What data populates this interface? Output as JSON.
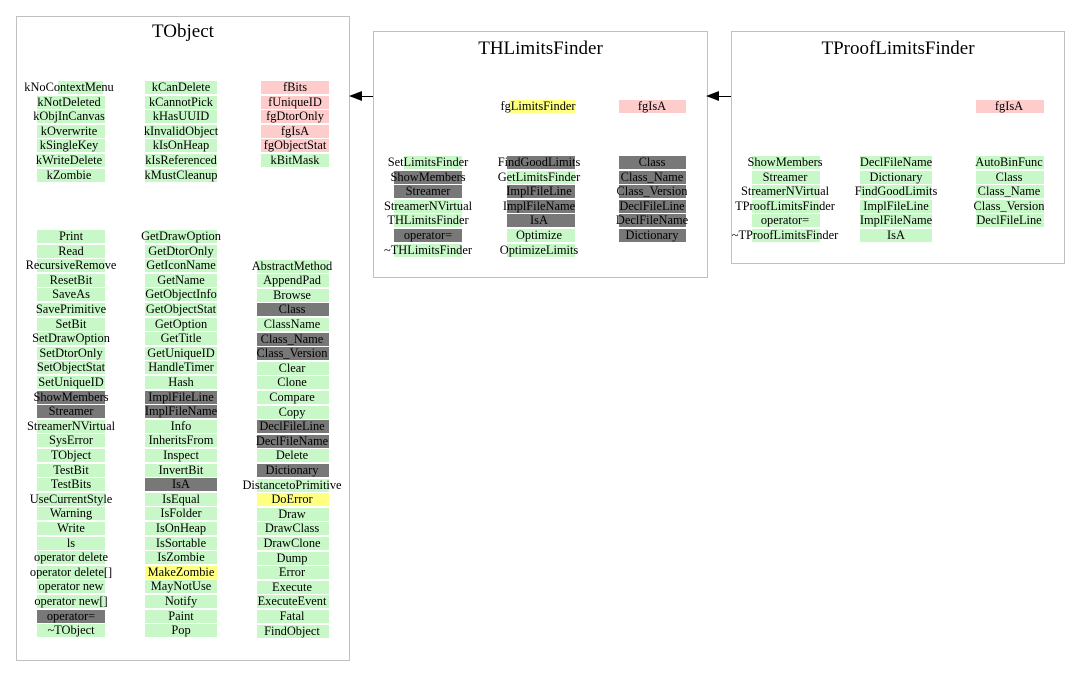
{
  "colors": {
    "border": "#c0c0c0",
    "public": "#c8f8c8",
    "data": "#ffcccc",
    "inherited_hidden": "#787878",
    "highlight": "#ffff80"
  },
  "boxes": [
    {
      "id": "tobject",
      "title": "TObject",
      "columns": [
        {
          "items": [
            {
              "t": "kNoContextMenu",
              "c": "g",
              "bar": [
                58,
                103
              ]
            },
            {
              "t": "kNotDeleted",
              "c": "g"
            },
            {
              "t": "kObjInCanvas",
              "c": "g"
            },
            {
              "t": "kOverwrite",
              "c": "g"
            },
            {
              "t": "kSingleKey",
              "c": "g"
            },
            {
              "t": "kWriteDelete",
              "c": "g"
            },
            {
              "t": "kZombie",
              "c": "g"
            }
          ]
        },
        {
          "items": [
            {
              "t": "kCanDelete",
              "c": "g"
            },
            {
              "t": "kCannotPick",
              "c": "g"
            },
            {
              "t": "kHasUUID",
              "c": "g"
            },
            {
              "t": "kInvalidObject",
              "c": "g"
            },
            {
              "t": "kIsOnHeap",
              "c": "g"
            },
            {
              "t": "kIsReferenced",
              "c": "g"
            },
            {
              "t": "kMustCleanup",
              "c": "g"
            }
          ]
        },
        {
          "items": [
            {
              "t": "fBits",
              "c": "r"
            },
            {
              "t": "fUniqueID",
              "c": "r"
            },
            {
              "t": "fgDtorOnly",
              "c": "r"
            },
            {
              "t": "fgIsA",
              "c": "r"
            },
            {
              "t": "fgObjectStat",
              "c": "r"
            },
            {
              "t": "kBitMask",
              "c": "g"
            }
          ]
        },
        {
          "items": [
            {
              "t": "Print",
              "c": "g"
            },
            {
              "t": "Read",
              "c": "g"
            },
            {
              "t": "RecursiveRemove",
              "c": "g"
            },
            {
              "t": "ResetBit",
              "c": "g"
            },
            {
              "t": "SaveAs",
              "c": "g"
            },
            {
              "t": "SavePrimitive",
              "c": "g"
            },
            {
              "t": "SetBit",
              "c": "g"
            },
            {
              "t": "SetDrawOption",
              "c": "g"
            },
            {
              "t": "SetDtorOnly",
              "c": "g"
            },
            {
              "t": "SetObjectStat",
              "c": "g"
            },
            {
              "t": "SetUniqueID",
              "c": "g"
            },
            {
              "t": "ShowMembers",
              "c": "d"
            },
            {
              "t": "Streamer",
              "c": "d"
            },
            {
              "t": "StreamerNVirtual",
              "c": "g"
            },
            {
              "t": "SysError",
              "c": "g"
            },
            {
              "t": "TObject",
              "c": "g"
            },
            {
              "t": "TestBit",
              "c": "g"
            },
            {
              "t": "TestBits",
              "c": "g"
            },
            {
              "t": "UseCurrentStyle",
              "c": "g"
            },
            {
              "t": "Warning",
              "c": "g"
            },
            {
              "t": "Write",
              "c": "g"
            },
            {
              "t": "ls",
              "c": "g"
            },
            {
              "t": "operator delete",
              "c": "g"
            },
            {
              "t": "operator delete[]",
              "c": "g"
            },
            {
              "t": "operator new",
              "c": "g"
            },
            {
              "t": "operator new[]",
              "c": "g"
            },
            {
              "t": "operator=",
              "c": "d"
            },
            {
              "t": "~TObject",
              "c": "g"
            }
          ]
        },
        {
          "items": [
            {
              "t": "GetDrawOption",
              "c": "g"
            },
            {
              "t": "GetDtorOnly",
              "c": "g"
            },
            {
              "t": "GetIconName",
              "c": "g"
            },
            {
              "t": "GetName",
              "c": "g"
            },
            {
              "t": "GetObjectInfo",
              "c": "g"
            },
            {
              "t": "GetObjectStat",
              "c": "g"
            },
            {
              "t": "GetOption",
              "c": "g"
            },
            {
              "t": "GetTitle",
              "c": "g"
            },
            {
              "t": "GetUniqueID",
              "c": "g"
            },
            {
              "t": "HandleTimer",
              "c": "g"
            },
            {
              "t": "Hash",
              "c": "g"
            },
            {
              "t": "ImplFileLine",
              "c": "d"
            },
            {
              "t": "ImplFileName",
              "c": "d"
            },
            {
              "t": "Info",
              "c": "g"
            },
            {
              "t": "InheritsFrom",
              "c": "g"
            },
            {
              "t": "Inspect",
              "c": "g"
            },
            {
              "t": "InvertBit",
              "c": "g"
            },
            {
              "t": "IsA",
              "c": "d"
            },
            {
              "t": "IsEqual",
              "c": "g"
            },
            {
              "t": "IsFolder",
              "c": "g"
            },
            {
              "t": "IsOnHeap",
              "c": "g"
            },
            {
              "t": "IsSortable",
              "c": "g"
            },
            {
              "t": "IsZombie",
              "c": "g"
            },
            {
              "t": "MakeZombie",
              "c": "y"
            },
            {
              "t": "MayNotUse",
              "c": "g"
            },
            {
              "t": "Notify",
              "c": "g"
            },
            {
              "t": "Paint",
              "c": "g"
            },
            {
              "t": "Pop",
              "c": "g"
            }
          ]
        },
        {
          "items": [
            {
              "t": "AbstractMethod",
              "c": "g"
            },
            {
              "t": "AppendPad",
              "c": "g"
            },
            {
              "t": "Browse",
              "c": "g"
            },
            {
              "t": "Class",
              "c": "d"
            },
            {
              "t": "ClassName",
              "c": "g"
            },
            {
              "t": "Class_Name",
              "c": "d"
            },
            {
              "t": "Class_Version",
              "c": "d"
            },
            {
              "t": "Clear",
              "c": "g"
            },
            {
              "t": "Clone",
              "c": "g"
            },
            {
              "t": "Compare",
              "c": "g"
            },
            {
              "t": "Copy",
              "c": "g"
            },
            {
              "t": "DeclFileLine",
              "c": "d"
            },
            {
              "t": "DeclFileName",
              "c": "d"
            },
            {
              "t": "Delete",
              "c": "g"
            },
            {
              "t": "Dictionary",
              "c": "d"
            },
            {
              "t": "DistancetoPrimitive",
              "c": "g"
            },
            {
              "t": "DoError",
              "c": "y"
            },
            {
              "t": "Draw",
              "c": "g"
            },
            {
              "t": "DrawClass",
              "c": "g"
            },
            {
              "t": "DrawClone",
              "c": "g"
            },
            {
              "t": "Dump",
              "c": "g"
            },
            {
              "t": "Error",
              "c": "g"
            },
            {
              "t": "Execute",
              "c": "g"
            },
            {
              "t": "ExecuteEvent",
              "c": "g"
            },
            {
              "t": "Fatal",
              "c": "g"
            },
            {
              "t": "FindObject",
              "c": "g"
            }
          ]
        }
      ]
    },
    {
      "id": "thlimitsfinder",
      "title": "THLimitsFinder",
      "columns": [
        {
          "items": [
            {
              "t": "fgLimitsFinder",
              "c": "y"
            }
          ]
        },
        {
          "items": [
            {
              "t": "fgIsA",
              "c": "r"
            }
          ]
        },
        {
          "items": [
            {
              "t": "SetLimitsFinder",
              "c": "g"
            },
            {
              "t": "ShowMembers",
              "c": "d"
            },
            {
              "t": "Streamer",
              "c": "d"
            },
            {
              "t": "StreamerNVirtual",
              "c": "g"
            },
            {
              "t": "THLimitsFinder",
              "c": "g"
            },
            {
              "t": "operator=",
              "c": "d"
            },
            {
              "t": "~THLimitsFinder",
              "c": "g"
            }
          ]
        },
        {
          "items": [
            {
              "t": "FindGoodLimits",
              "c": "d"
            },
            {
              "t": "GetLimitsFinder",
              "c": "g"
            },
            {
              "t": "ImplFileLine",
              "c": "d"
            },
            {
              "t": "ImplFileName",
              "c": "d"
            },
            {
              "t": "IsA",
              "c": "d"
            },
            {
              "t": "Optimize",
              "c": "g"
            },
            {
              "t": "OptimizeLimits",
              "c": "g"
            }
          ]
        },
        {
          "items": [
            {
              "t": "Class",
              "c": "d"
            },
            {
              "t": "Class_Name",
              "c": "d"
            },
            {
              "t": "Class_Version",
              "c": "d"
            },
            {
              "t": "DeclFileLine",
              "c": "d"
            },
            {
              "t": "DeclFileName",
              "c": "d"
            },
            {
              "t": "Dictionary",
              "c": "d"
            }
          ]
        }
      ]
    },
    {
      "id": "tprooflimitsfinder",
      "title": "TProofLimitsFinder",
      "columns": [
        {
          "items": [
            {
              "t": "fgIsA",
              "c": "r"
            }
          ]
        },
        {
          "items": [
            {
              "t": "ShowMembers",
              "c": "g"
            },
            {
              "t": "Streamer",
              "c": "g"
            },
            {
              "t": "StreamerNVirtual",
              "c": "g"
            },
            {
              "t": "TProofLimitsFinder",
              "c": "g"
            },
            {
              "t": "operator=",
              "c": "g"
            },
            {
              "t": "~TProofLimitsFinder",
              "c": "g"
            }
          ]
        },
        {
          "items": [
            {
              "t": "DeclFileName",
              "c": "g"
            },
            {
              "t": "Dictionary",
              "c": "g"
            },
            {
              "t": "FindGoodLimits",
              "c": "g"
            },
            {
              "t": "ImplFileLine",
              "c": "g"
            },
            {
              "t": "ImplFileName",
              "c": "g"
            },
            {
              "t": "IsA",
              "c": "g"
            }
          ]
        },
        {
          "items": [
            {
              "t": "AutoBinFunc",
              "c": "g"
            },
            {
              "t": "Class",
              "c": "g"
            },
            {
              "t": "Class_Name",
              "c": "g"
            },
            {
              "t": "Class_Version",
              "c": "g"
            },
            {
              "t": "DeclFileLine",
              "c": "g"
            }
          ]
        }
      ]
    }
  ]
}
